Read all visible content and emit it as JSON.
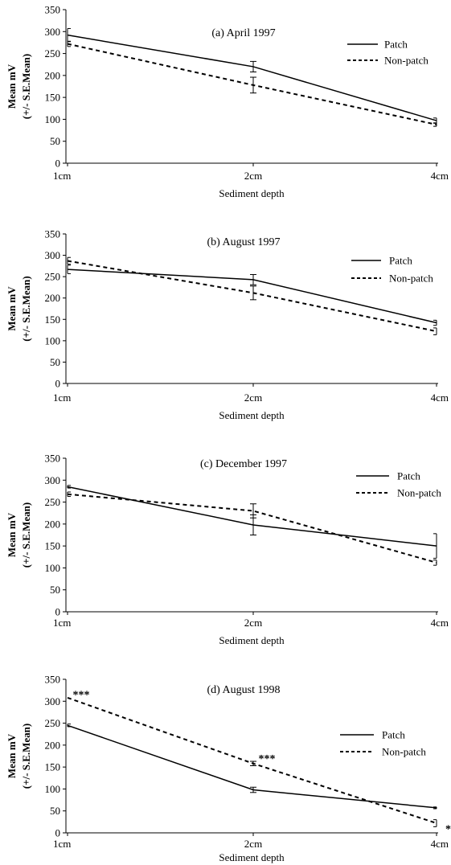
{
  "chart_data": [
    {
      "type": "line",
      "title": "(a) April 1997",
      "xlabel": "Sediment depth",
      "ylabel": [
        "Mean mV",
        "(+/- S.E.Mean)"
      ],
      "categories": [
        "1cm",
        "2cm",
        "4cm"
      ],
      "ylim": [
        0,
        350
      ],
      "yticks": [
        0,
        50,
        100,
        150,
        200,
        250,
        300,
        350
      ],
      "legend_position": "top-right",
      "series": [
        {
          "name": "Patch",
          "style": "solid",
          "values": [
            292,
            220,
            97
          ],
          "errors": [
            15,
            12,
            6
          ]
        },
        {
          "name": "Non-patch",
          "style": "dashed",
          "values": [
            272,
            178,
            88
          ],
          "errors": [
            6,
            18,
            4
          ]
        }
      ],
      "annotations": []
    },
    {
      "type": "line",
      "title": "(b) August 1997",
      "xlabel": "Sediment depth",
      "ylabel": [
        "Mean mV",
        "(+/- S.E.Mean)"
      ],
      "categories": [
        "1cm",
        "2cm",
        "4cm"
      ],
      "ylim": [
        0,
        350
      ],
      "yticks": [
        0,
        50,
        100,
        150,
        200,
        250,
        300,
        350
      ],
      "legend_position": "top-right",
      "series": [
        {
          "name": "Patch",
          "style": "solid",
          "values": [
            267,
            243,
            142
          ],
          "errors": [
            10,
            12,
            6
          ]
        },
        {
          "name": "Non-patch",
          "style": "dashed",
          "values": [
            287,
            212,
            122
          ],
          "errors": [
            8,
            16,
            8
          ]
        }
      ],
      "annotations": []
    },
    {
      "type": "line",
      "title": "(c) December 1997",
      "xlabel": "Sediment depth",
      "ylabel": [
        "Mean mV",
        "(+/- S.E.Mean)"
      ],
      "categories": [
        "1cm",
        "2cm",
        "4cm"
      ],
      "ylim": [
        0,
        350
      ],
      "yticks": [
        0,
        50,
        100,
        150,
        200,
        250,
        300,
        350
      ],
      "legend_position": "top-right",
      "series": [
        {
          "name": "Patch",
          "style": "solid",
          "values": [
            285,
            198,
            150
          ],
          "errors": [
            3,
            23,
            28
          ]
        },
        {
          "name": "Non-patch",
          "style": "dashed",
          "values": [
            268,
            230,
            112
          ],
          "errors": [
            5,
            16,
            6
          ]
        }
      ],
      "annotations": []
    },
    {
      "type": "line",
      "title": "(d) August 1998",
      "xlabel": "Sediment depth",
      "ylabel": [
        "Mean mV",
        "(+/- S.E.Mean)"
      ],
      "categories": [
        "1cm",
        "2cm",
        "4cm"
      ],
      "ylim": [
        0,
        350
      ],
      "yticks": [
        0,
        50,
        100,
        150,
        200,
        250,
        300,
        350
      ],
      "legend_position": "right",
      "series": [
        {
          "name": "Patch",
          "style": "solid",
          "values": [
            245,
            98,
            57
          ],
          "errors": [
            3,
            6,
            2
          ]
        },
        {
          "name": "Non-patch",
          "style": "dashed",
          "values": [
            308,
            158,
            22
          ],
          "errors": [
            0,
            5,
            8
          ]
        }
      ],
      "annotations": [
        {
          "text": "***",
          "category": "1cm",
          "y": 318
        },
        {
          "text": "***",
          "category": "2cm",
          "y": 172
        },
        {
          "text": "*",
          "category": "4cm",
          "y": 12
        }
      ]
    }
  ]
}
